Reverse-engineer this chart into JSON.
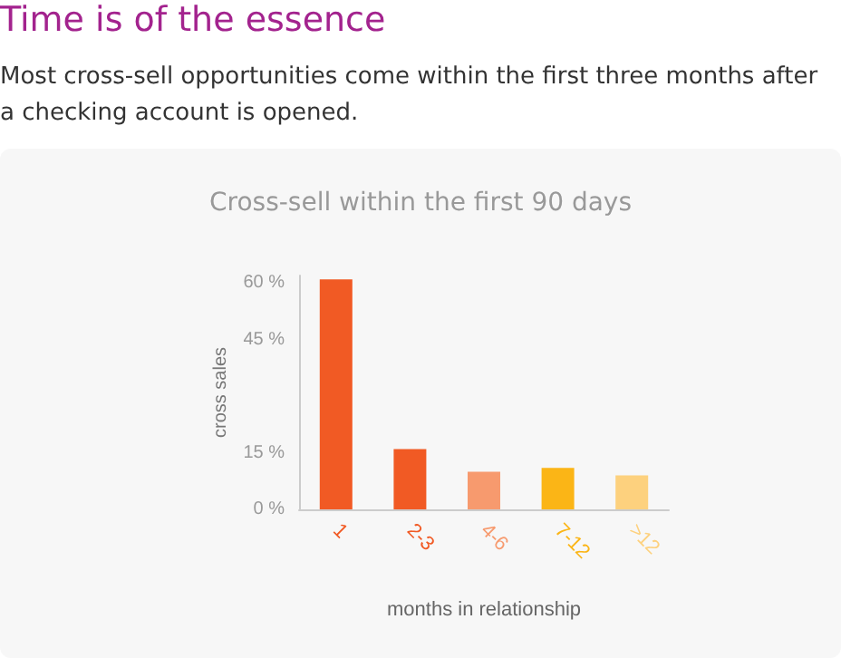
{
  "chart_data": {
    "type": "bar",
    "title": "Time is of the essence",
    "subtitle": "Most cross-sell opportunities come within the first three months after a checking account is opened.",
    "annotations": [
      "Cross-sell within the first 90 days"
    ],
    "xlabel": "months in relationship",
    "ylabel": "cross sales",
    "categories": [
      "1",
      "2-3",
      "4-6",
      "7-12",
      ">12"
    ],
    "values": [
      61,
      16,
      10,
      11,
      9
    ],
    "colors": [
      "#f15a24",
      "#f15a24",
      "#f79a6e",
      "#fbb516",
      "#fdd17e"
    ],
    "ylim": [
      0,
      62
    ],
    "yticks": [
      {
        "value": 0,
        "label": "0 %"
      },
      {
        "value": 15,
        "label": "15 %"
      },
      {
        "value": 45,
        "label": "45 %"
      },
      {
        "value": 60,
        "label": "60 %"
      }
    ],
    "grid": false
  }
}
